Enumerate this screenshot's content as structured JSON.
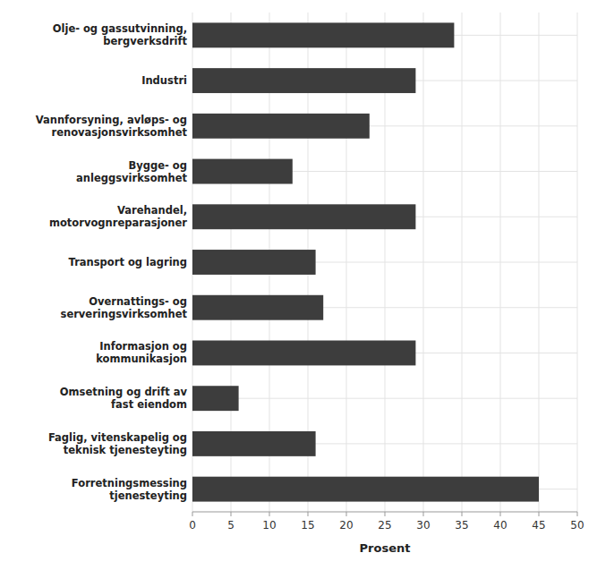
{
  "chart_data": {
    "type": "bar",
    "orientation": "horizontal",
    "categories": [
      "Forretningsmessing\ntjenesteyting",
      "Faglig, vitenskapelig og\nteknisk tjenesteyting",
      "Omsetning og drift av\nfast eiendom",
      "Informasjon og\nkommunikasjon",
      "Overnattings- og\nserveringsvirksomhet",
      "Transport og lagring",
      "Varehandel,\nmotorvognreparasjoner",
      "Bygge- og\nanleggsvirksomhet",
      "Vannforsyning, avløps- og\nrenovasjonsvirksomhet",
      "Industri",
      "Olje- og gassutvinning,\nbergverksdrift"
    ],
    "values": [
      45,
      16,
      6,
      29,
      17,
      16,
      29,
      13,
      23,
      29,
      34
    ],
    "color": "#3d3d3d",
    "xlabel": "Prosent",
    "xlim": [
      0,
      50
    ],
    "xticks": [
      0,
      5,
      10,
      15,
      20,
      25,
      30,
      35,
      40,
      45,
      50
    ],
    "grid": true
  }
}
